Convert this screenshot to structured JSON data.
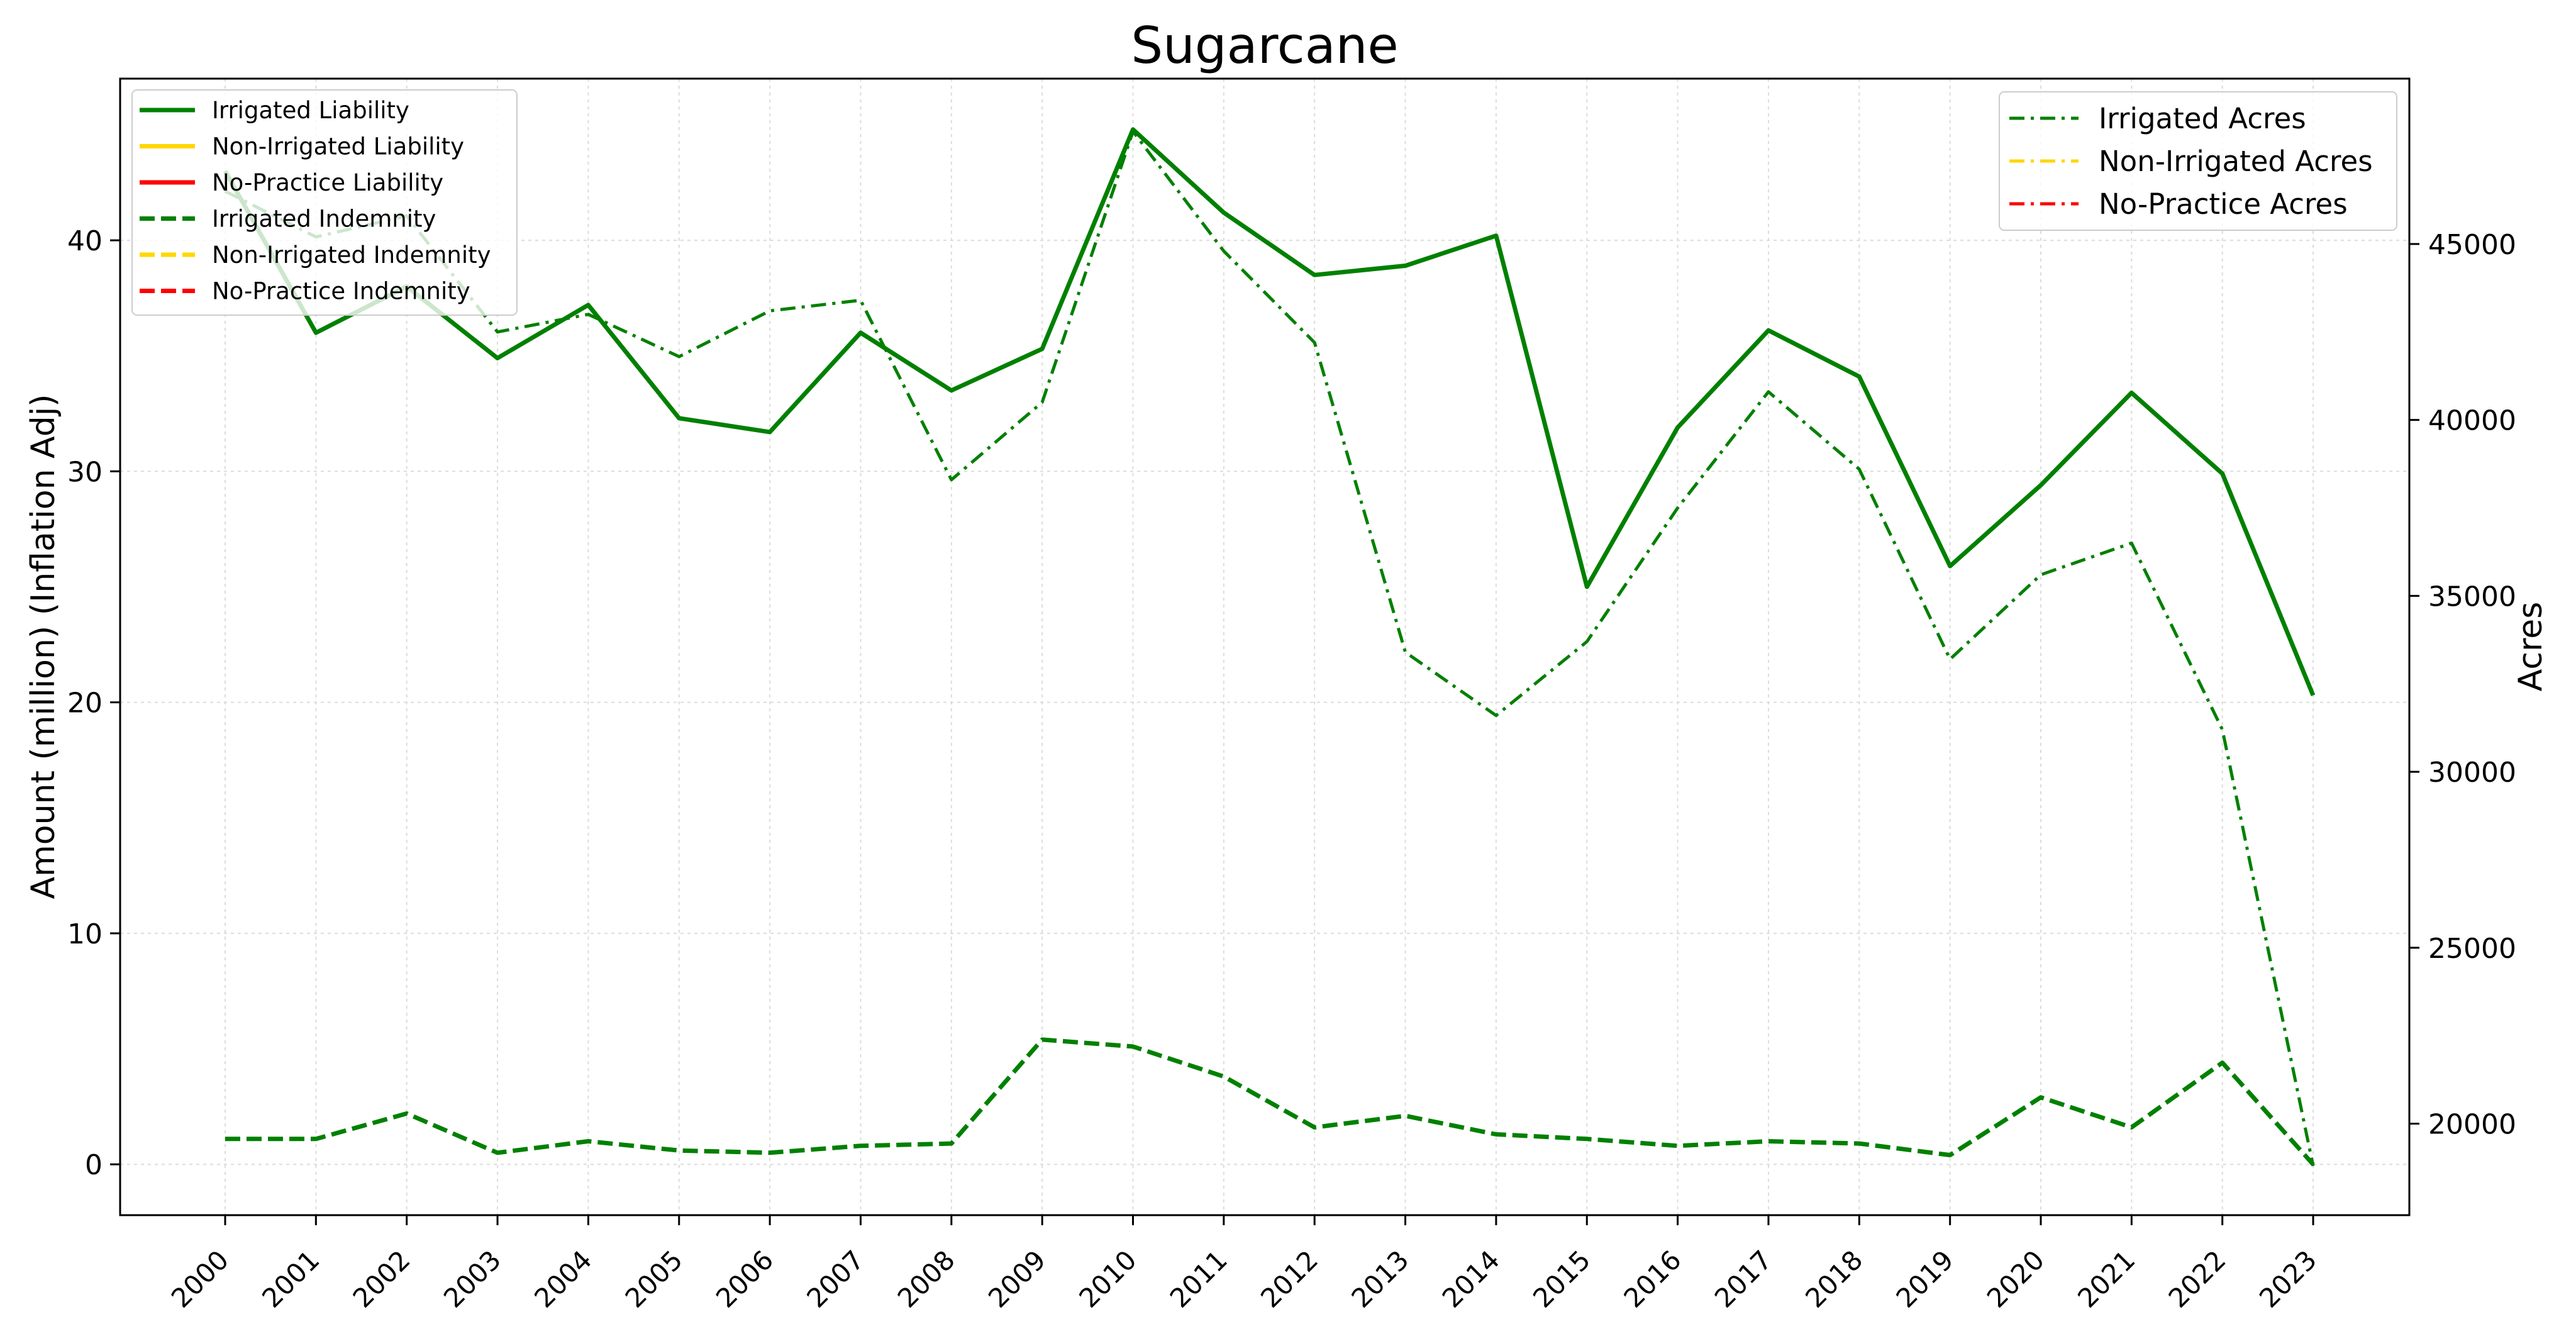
{
  "chart_data": {
    "type": "line",
    "title": "Sugarcane",
    "xlabel": "",
    "ylabel": "Amount (million) (Inflation Adj)",
    "y2label": "Acres",
    "x": [
      "2000",
      "2001",
      "2002",
      "2003",
      "2004",
      "2005",
      "2006",
      "2007",
      "2008",
      "2009",
      "2010",
      "2011",
      "2012",
      "2013",
      "2014",
      "2015",
      "2016",
      "2017",
      "2018",
      "2019",
      "2020",
      "2021",
      "2022",
      "2023"
    ],
    "ylim": [
      -2.2,
      47
    ],
    "y2lim": [
      17400,
      49700
    ],
    "yticks": [
      0,
      10,
      20,
      30,
      40
    ],
    "y2ticks": [
      20000,
      25000,
      30000,
      35000,
      40000,
      45000
    ],
    "grid": true,
    "legend_left_placement": "top-left",
    "legend_right_placement": "top-right",
    "series_left": [
      {
        "name": "Irrigated Liability",
        "color": "#008000",
        "style": "solid",
        "values": [
          43.0,
          36.0,
          38.0,
          34.9,
          37.2,
          32.3,
          31.7,
          36.0,
          33.5,
          35.3,
          44.8,
          41.2,
          38.5,
          38.9,
          40.2,
          25.0,
          31.9,
          36.1,
          34.1,
          25.9,
          29.4,
          33.4,
          29.9,
          20.3
        ]
      },
      {
        "name": "Non-Irrigated Liability",
        "color": "#FFD700",
        "style": "solid",
        "values": []
      },
      {
        "name": "No-Practice Liability",
        "color": "#FF0000",
        "style": "solid",
        "values": []
      },
      {
        "name": "Irrigated Indemnity",
        "color": "#008000",
        "style": "dashed",
        "values": [
          1.1,
          1.1,
          2.2,
          0.5,
          1.0,
          0.6,
          0.5,
          0.8,
          0.9,
          5.4,
          5.1,
          3.8,
          1.6,
          2.1,
          1.3,
          1.1,
          0.8,
          1.0,
          0.9,
          0.4,
          2.9,
          1.6,
          4.4,
          0.0
        ]
      },
      {
        "name": "Non-Irrigated Indemnity",
        "color": "#FFD700",
        "style": "dashed",
        "values": []
      },
      {
        "name": "No-Practice Indemnity",
        "color": "#FF0000",
        "style": "dashed",
        "values": []
      }
    ],
    "series_right": [
      {
        "name": "Irrigated Acres",
        "color": "#008000",
        "style": "dashdot",
        "values": [
          46500,
          45200,
          45800,
          42500,
          43000,
          41800,
          43100,
          43400,
          38300,
          40500,
          48200,
          44800,
          42200,
          33400,
          31600,
          33700,
          37500,
          40800,
          38600,
          33200,
          35600,
          36500,
          31200,
          18800
        ]
      },
      {
        "name": "Non-Irrigated Acres",
        "color": "#FFD700",
        "style": "dashdot",
        "values": []
      },
      {
        "name": "No-Practice Acres",
        "color": "#FF0000",
        "style": "dashdot",
        "values": []
      }
    ]
  }
}
